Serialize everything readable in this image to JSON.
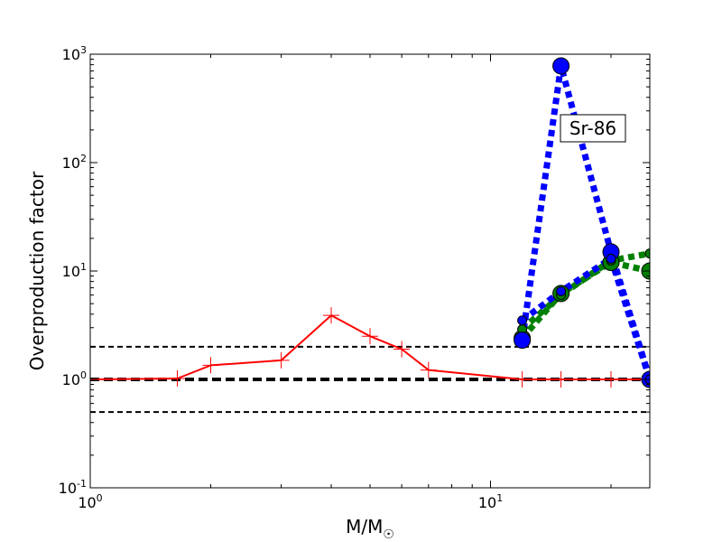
{
  "chart_data": {
    "type": "line",
    "x_scale": "log",
    "y_scale": "log",
    "xlim": [
      1,
      25
    ],
    "ylim": [
      0.1,
      1000
    ],
    "xlabel": "M/M",
    "xlabel_subscript": "☉",
    "ylabel": "Overproduction factor",
    "x_ticks": [
      {
        "value": 1,
        "base": "10",
        "exp": "0"
      },
      {
        "value": 10,
        "base": "10",
        "exp": "1"
      }
    ],
    "y_ticks": [
      {
        "value": 0.1,
        "base": "10",
        "exp": "-1"
      },
      {
        "value": 1,
        "base": "10",
        "exp": "0"
      },
      {
        "value": 10,
        "base": "10",
        "exp": "1"
      },
      {
        "value": 100,
        "base": "10",
        "exp": "2"
      },
      {
        "value": 1000,
        "base": "10",
        "exp": "3"
      }
    ],
    "annotation": "Sr-86",
    "reference_lines": [
      {
        "y": 2,
        "color": "#000000",
        "style": "dashed"
      },
      {
        "y": 1,
        "color": "#000000",
        "style": "dashed-thick"
      },
      {
        "y": 0.5,
        "color": "#000000",
        "style": "dashed"
      }
    ],
    "series": [
      {
        "color": "#ff0000",
        "style": "solid",
        "marker": "plus",
        "x": [
          1.0,
          1.65,
          2.0,
          3.0,
          4.0,
          5.0,
          6.0,
          7.0,
          12.0,
          15.0,
          20.0,
          25.0
        ],
        "y": [
          1.0,
          1.02,
          1.35,
          1.5,
          3.9,
          2.5,
          1.9,
          1.22,
          1.0,
          1.0,
          1.0,
          1.0
        ]
      },
      {
        "color": "#008000",
        "style": "dotted",
        "marker": "circle",
        "x": [
          12.0,
          15.0,
          20.0,
          25.0
        ],
        "y": [
          2.4,
          6.2,
          12.0,
          10.0
        ]
      },
      {
        "color": "#008000",
        "style": "dotted",
        "marker": "circle-small",
        "x": [
          12.0,
          15.0,
          20.0,
          25.0
        ],
        "y": [
          2.9,
          6.0,
          12.5,
          14.5
        ]
      },
      {
        "color": "#0000ff",
        "style": "dotted",
        "marker": "circle",
        "x": [
          12.0,
          15.0,
          20.0,
          25.0
        ],
        "y": [
          2.3,
          780,
          15.0,
          1.0
        ]
      },
      {
        "color": "#0000ff",
        "style": "dotted",
        "marker": "circle-small",
        "x": [
          12.0,
          15.0,
          20.0,
          25.0
        ],
        "y": [
          3.5,
          6.5,
          13.0,
          1.0
        ]
      }
    ]
  }
}
